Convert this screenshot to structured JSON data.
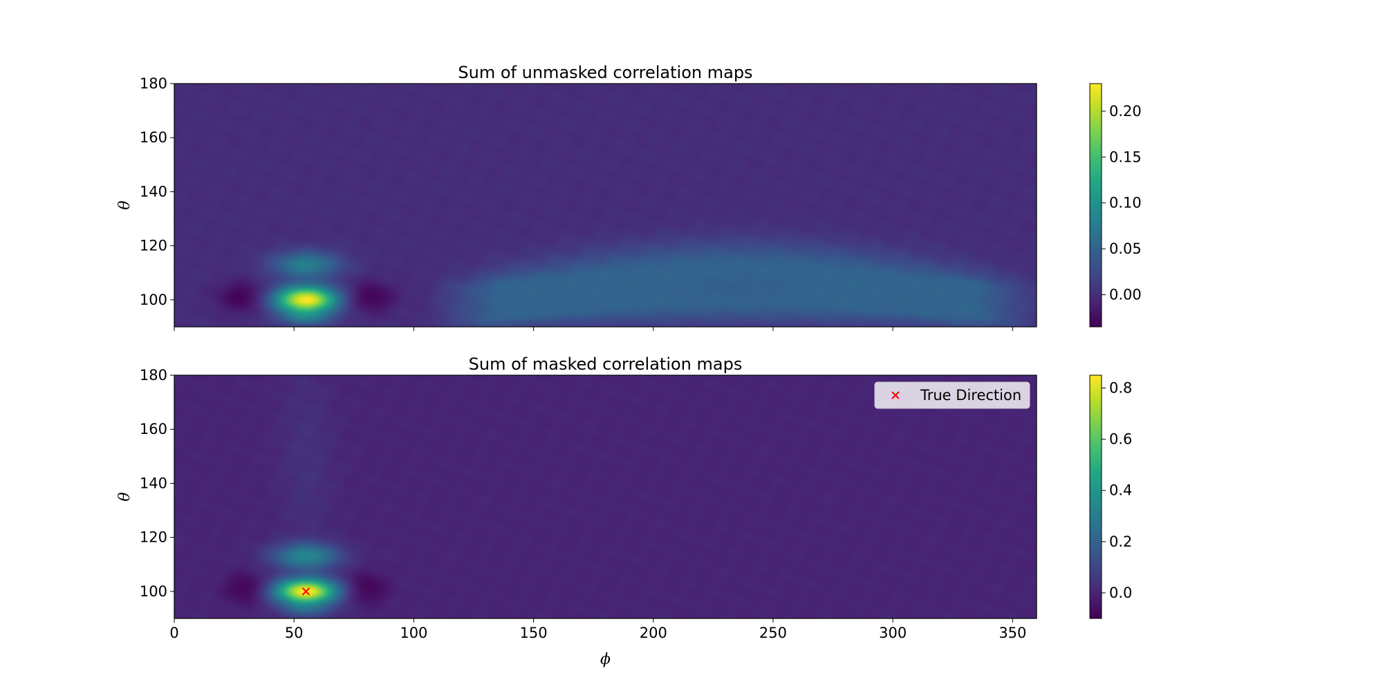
{
  "chart_data": [
    {
      "type": "heatmap",
      "title": "Sum of unmasked correlation maps",
      "xlabel": "",
      "ylabel": "θ",
      "xlim": [
        0,
        360
      ],
      "ylim": [
        90,
        180
      ],
      "xticks": [
        0,
        50,
        100,
        150,
        200,
        250,
        300,
        350
      ],
      "xtick_labels_visible": false,
      "yticks": [
        100,
        120,
        140,
        160,
        180
      ],
      "ytick_labels": [
        "100",
        "120",
        "140",
        "160",
        "180"
      ],
      "colormap": "viridis",
      "colorbar": {
        "range": [
          -0.035,
          0.23
        ],
        "ticks": [
          0.0,
          0.05,
          0.1,
          0.15,
          0.2
        ],
        "tick_labels": [
          "0.00",
          "0.05",
          "0.10",
          "0.15",
          "0.20"
        ]
      },
      "features": [
        {
          "kind": "blob",
          "phi": 55,
          "theta": 100,
          "value": 0.23,
          "sphi": 9,
          "stheta": 3.5
        },
        {
          "kind": "blob",
          "phi": 55,
          "theta": 113,
          "value": 0.08,
          "sphi": 10,
          "stheta": 3.5
        },
        {
          "kind": "blob",
          "phi": 55,
          "theta": 93,
          "value": 0.05,
          "sphi": 8,
          "stheta": 2
        },
        {
          "kind": "blob",
          "phi": 28,
          "theta": 101,
          "value": -0.035,
          "sphi": 7,
          "stheta": 4
        },
        {
          "kind": "blob",
          "phi": 82,
          "theta": 101,
          "value": -0.035,
          "sphi": 7,
          "stheta": 4
        },
        {
          "kind": "arc",
          "phi_range": [
            120,
            350
          ],
          "theta_base": 98,
          "theta_peak": 112,
          "value": 0.05
        }
      ]
    },
    {
      "type": "heatmap",
      "title": "Sum of masked correlation maps",
      "xlabel": "ϕ",
      "ylabel": "θ",
      "xlim": [
        0,
        360
      ],
      "ylim": [
        90,
        180
      ],
      "xticks": [
        0,
        50,
        100,
        150,
        200,
        250,
        300,
        350
      ],
      "xtick_labels": [
        "0",
        "50",
        "100",
        "150",
        "200",
        "250",
        "300",
        "350"
      ],
      "yticks": [
        100,
        120,
        140,
        160,
        180
      ],
      "ytick_labels": [
        "100",
        "120",
        "140",
        "160",
        "180"
      ],
      "colormap": "viridis",
      "colorbar": {
        "range": [
          -0.1,
          0.85
        ],
        "ticks": [
          0.0,
          0.2,
          0.4,
          0.6,
          0.8
        ],
        "tick_labels": [
          "0.0",
          "0.2",
          "0.4",
          "0.6",
          "0.8"
        ]
      },
      "features": [
        {
          "kind": "blob",
          "phi": 55,
          "theta": 100,
          "value": 0.85,
          "sphi": 9,
          "stheta": 3.3
        },
        {
          "kind": "blob",
          "phi": 55,
          "theta": 113,
          "value": 0.33,
          "sphi": 10,
          "stheta": 3.5
        },
        {
          "kind": "blob",
          "phi": 55,
          "theta": 93,
          "value": 0.15,
          "sphi": 8,
          "stheta": 2
        },
        {
          "kind": "blob",
          "phi": 30,
          "theta": 101,
          "value": -0.1,
          "sphi": 6,
          "stheta": 4
        },
        {
          "kind": "blob",
          "phi": 80,
          "theta": 101,
          "value": -0.1,
          "sphi": 6,
          "stheta": 4
        },
        {
          "kind": "blob",
          "phi": 55,
          "theta": 150,
          "value": 0.04,
          "sphi": 8,
          "stheta": 25
        }
      ],
      "marker": {
        "phi": 55,
        "theta": 100,
        "symbol": "x",
        "color": "#ff0000"
      },
      "legend": {
        "label": "True Direction",
        "position": "upper right"
      }
    }
  ]
}
